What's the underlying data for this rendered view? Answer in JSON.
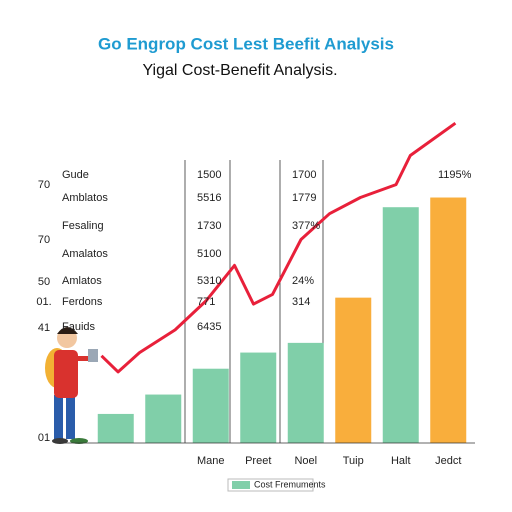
{
  "chart_data": {
    "type": "bar",
    "title": "Go Engrop Cost Lest Beefit Analysis",
    "subtitle": "Yigal Cost-Benefit Analysis.",
    "categories": [
      null,
      null,
      "Mane",
      "Preet",
      "Noel",
      "Tuip",
      "Halt",
      "Jedct"
    ],
    "series": [
      {
        "name": "Cost Fremuments",
        "color": "#80cfa9",
        "colors": [
          "#80cfa9",
          "#80cfa9",
          "#80cfa9",
          "#80cfa9",
          "#80cfa9",
          "#f9ae3c",
          "#80cfa9",
          "#f9ae3c"
        ],
        "values": [
          9,
          15,
          23,
          28,
          31,
          45,
          73,
          76
        ]
      }
    ],
    "line": {
      "color": "#e8203a",
      "x": [
        0.2,
        0.55,
        1,
        1.75,
        2.4,
        3,
        3.4,
        3.8,
        4.4,
        5,
        5.65,
        6.4,
        6.7,
        7.65
      ],
      "values": [
        27,
        22,
        28,
        35,
        44,
        55,
        43,
        46,
        63,
        71,
        76,
        80,
        89,
        99
      ]
    },
    "xlim": [
      0,
      8
    ],
    "ylim": [
      0,
      100
    ],
    "axis_labels": [
      "70",
      "70",
      "50",
      "01.",
      "41",
      "01"
    ],
    "table_rows": [
      [
        "Gude",
        "1500",
        "1700",
        "1195%"
      ],
      [
        "Amblatos",
        "5516",
        "1779"
      ],
      [
        "Fesaling",
        "1730",
        "377%"
      ],
      [
        "Amalatos",
        "5100"
      ],
      [
        "Amlatos",
        "5310",
        "24%"
      ],
      [
        "Ferdons",
        "771",
        "314"
      ],
      [
        "Fauids",
        "6435"
      ]
    ]
  }
}
